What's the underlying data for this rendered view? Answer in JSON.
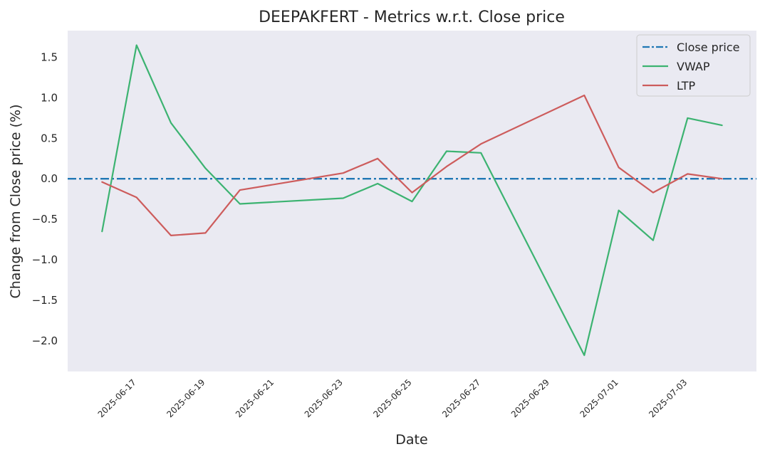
{
  "chart_data": {
    "type": "line",
    "title": "DEEPAKFERT - Metrics w.r.t. Close price",
    "xlabel": "Date",
    "ylabel": "Change from Close price (%)",
    "x": [
      "2025-06-16",
      "2025-06-17",
      "2025-06-18",
      "2025-06-19",
      "2025-06-20",
      "2025-06-23",
      "2025-06-24",
      "2025-06-25",
      "2025-06-26",
      "2025-06-27",
      "2025-06-30",
      "2025-07-01",
      "2025-07-02",
      "2025-07-03",
      "2025-07-04"
    ],
    "x_ticks": [
      "2025-06-17",
      "2025-06-19",
      "2025-06-21",
      "2025-06-23",
      "2025-06-25",
      "2025-06-27",
      "2025-06-29",
      "2025-07-01",
      "2025-07-03"
    ],
    "y_ticks": [
      1.5,
      1.0,
      0.5,
      0.0,
      -0.5,
      -1.0,
      -1.5,
      -2.0
    ],
    "y_tick_labels": [
      "1.5",
      "1.0",
      "0.5",
      "0.0",
      "−0.5",
      "−1.0",
      "−1.5",
      "−2.0"
    ],
    "ylim": [
      -2.38,
      1.83
    ],
    "xlim": [
      "2025-06-15",
      "2025-07-05"
    ],
    "grid": false,
    "legend_position": "top-right",
    "background": "#eaeaf2",
    "series": [
      {
        "name": "Close price",
        "style": "dash-dot",
        "color": "#1f77b4",
        "values": [
          0,
          0,
          0,
          0,
          0,
          0,
          0,
          0,
          0,
          0,
          0,
          0,
          0,
          0,
          0
        ]
      },
      {
        "name": "VWAP",
        "style": "solid",
        "color": "#3cb371",
        "values": [
          -0.65,
          1.65,
          0.69,
          0.13,
          -0.31,
          -0.24,
          -0.06,
          -0.28,
          0.34,
          0.32,
          -2.18,
          -0.39,
          -0.76,
          0.75,
          0.66
        ]
      },
      {
        "name": "LTP",
        "style": "solid",
        "color": "#cd5c5c",
        "values": [
          -0.04,
          -0.23,
          -0.7,
          -0.67,
          -0.14,
          0.07,
          0.25,
          -0.17,
          0.15,
          0.43,
          1.03,
          0.14,
          -0.17,
          0.06,
          0.0
        ]
      }
    ]
  }
}
